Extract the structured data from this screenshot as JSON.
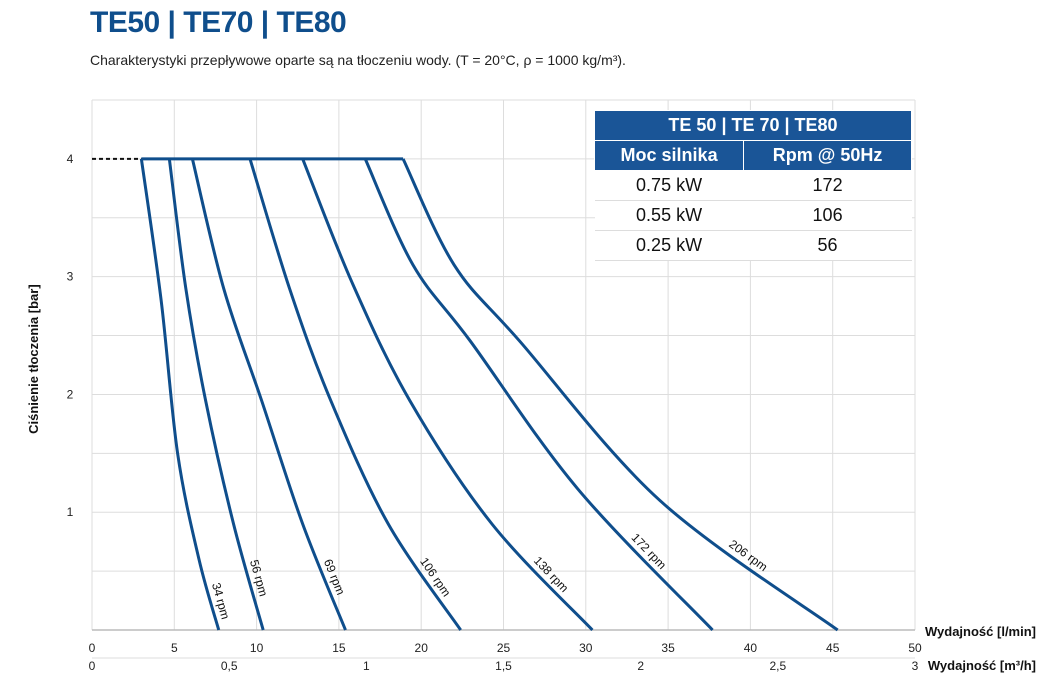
{
  "header": {
    "title": "TE50 | TE70 | TE80",
    "subtitle": "Charakterystyki przepływowe oparte są na tłoczeniu wody. (T = 20°C, ρ = 1000 kg/m³)."
  },
  "table": {
    "title": "TE 50 | TE 70 | TE80",
    "col1": "Moc silnika",
    "col2": "Rpm @ 50Hz",
    "rows": [
      {
        "power": "0.75 kW",
        "rpm": "172"
      },
      {
        "power": "0.55 kW",
        "rpm": "106"
      },
      {
        "power": "0.25 kW",
        "rpm": "56"
      }
    ]
  },
  "chart_data": {
    "type": "line",
    "title": "TE50 | TE70 | TE80",
    "xlabel": "Wydajność [l/min]",
    "x2label": "Wydajność [m³/h]",
    "ylabel": "Ciśnienie tłoczenia [bar]",
    "xlim": [
      0,
      50
    ],
    "ylim": [
      0,
      4.5
    ],
    "xticks": [
      "0",
      "5",
      "10",
      "15",
      "20",
      "25",
      "30",
      "35",
      "40",
      "45",
      "50"
    ],
    "x2ticks": [
      "0",
      "0,5",
      "1",
      "1,5",
      "2",
      "2,5",
      "3"
    ],
    "yticks": [
      "1",
      "2",
      "3",
      "4"
    ],
    "grid": true,
    "series": [
      {
        "name": "34 rpm",
        "points": [
          [
            3.0,
            4
          ],
          [
            4.2,
            2.8
          ],
          [
            5.2,
            1.5
          ],
          [
            6.5,
            0.6
          ],
          [
            7.7,
            0
          ]
        ]
      },
      {
        "name": "56 rpm",
        "points": [
          [
            4.7,
            4
          ],
          [
            5.7,
            2.9
          ],
          [
            6.9,
            1.95
          ],
          [
            8.6,
            0.9
          ],
          [
            10.4,
            0
          ]
        ]
      },
      {
        "name": "69 rpm",
        "points": [
          [
            6.1,
            4
          ],
          [
            8.0,
            2.9
          ],
          [
            10.3,
            1.95
          ],
          [
            12.8,
            0.9
          ],
          [
            15.4,
            0
          ]
        ]
      },
      {
        "name": "106 rpm",
        "points": [
          [
            9.6,
            4
          ],
          [
            12.0,
            2.9
          ],
          [
            14.5,
            1.95
          ],
          [
            18.0,
            0.9
          ],
          [
            22.4,
            0
          ]
        ]
      },
      {
        "name": "138 rpm",
        "points": [
          [
            12.8,
            4
          ],
          [
            15.8,
            2.95
          ],
          [
            19.3,
            1.95
          ],
          [
            24.3,
            0.9
          ],
          [
            30.4,
            0
          ]
        ]
      },
      {
        "name": "172 rpm",
        "points": [
          [
            16.6,
            4
          ],
          [
            19.5,
            3.1
          ],
          [
            23.0,
            2.45
          ],
          [
            29.5,
            1.2
          ],
          [
            37.7,
            0
          ]
        ]
      },
      {
        "name": "206 rpm",
        "points": [
          [
            18.9,
            4
          ],
          [
            22.0,
            3.1
          ],
          [
            26.0,
            2.45
          ],
          [
            34.5,
            1.1
          ],
          [
            45.3,
            0
          ]
        ]
      }
    ],
    "max_pressure_line": {
      "from": 3.0,
      "to": 18.9,
      "y": 4
    }
  }
}
